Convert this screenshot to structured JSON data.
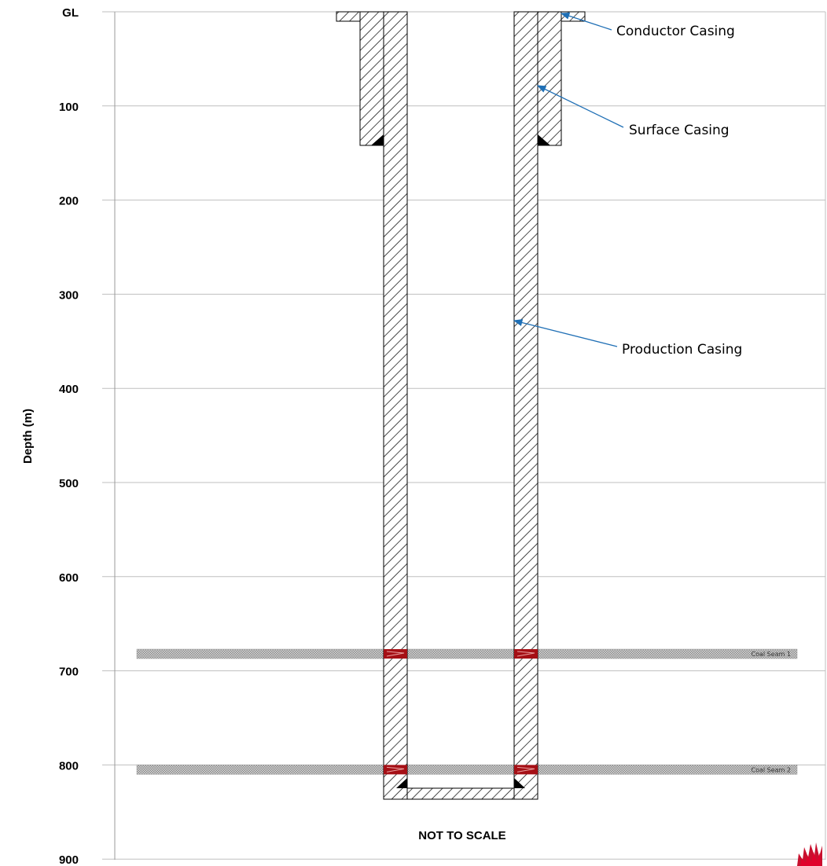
{
  "axis": {
    "ylabel": "Depth (m)",
    "ticks": [
      "GL",
      "100",
      "200",
      "300",
      "400",
      "500",
      "600",
      "700",
      "800",
      "900"
    ],
    "ylim": [
      0,
      900
    ],
    "grid": true
  },
  "casings": {
    "conductor": {
      "label": "Conductor Casing",
      "bottom_m": 10
    },
    "surface": {
      "label": "Surface Casing",
      "bottom_m": 142
    },
    "production": {
      "label": "Production Casing",
      "bottom_m": 832
    }
  },
  "coal_seams": [
    {
      "label": "Coal Seam 1",
      "depth_m": 682
    },
    {
      "label": "Coal Seam 2",
      "depth_m": 805
    }
  ],
  "note": "NOT TO SCALE",
  "colors": {
    "callout_arrow": "#1f6fb5",
    "perforation": "#a50f15",
    "grid": "#bfbfbf",
    "seam": "#a9a9a9"
  }
}
